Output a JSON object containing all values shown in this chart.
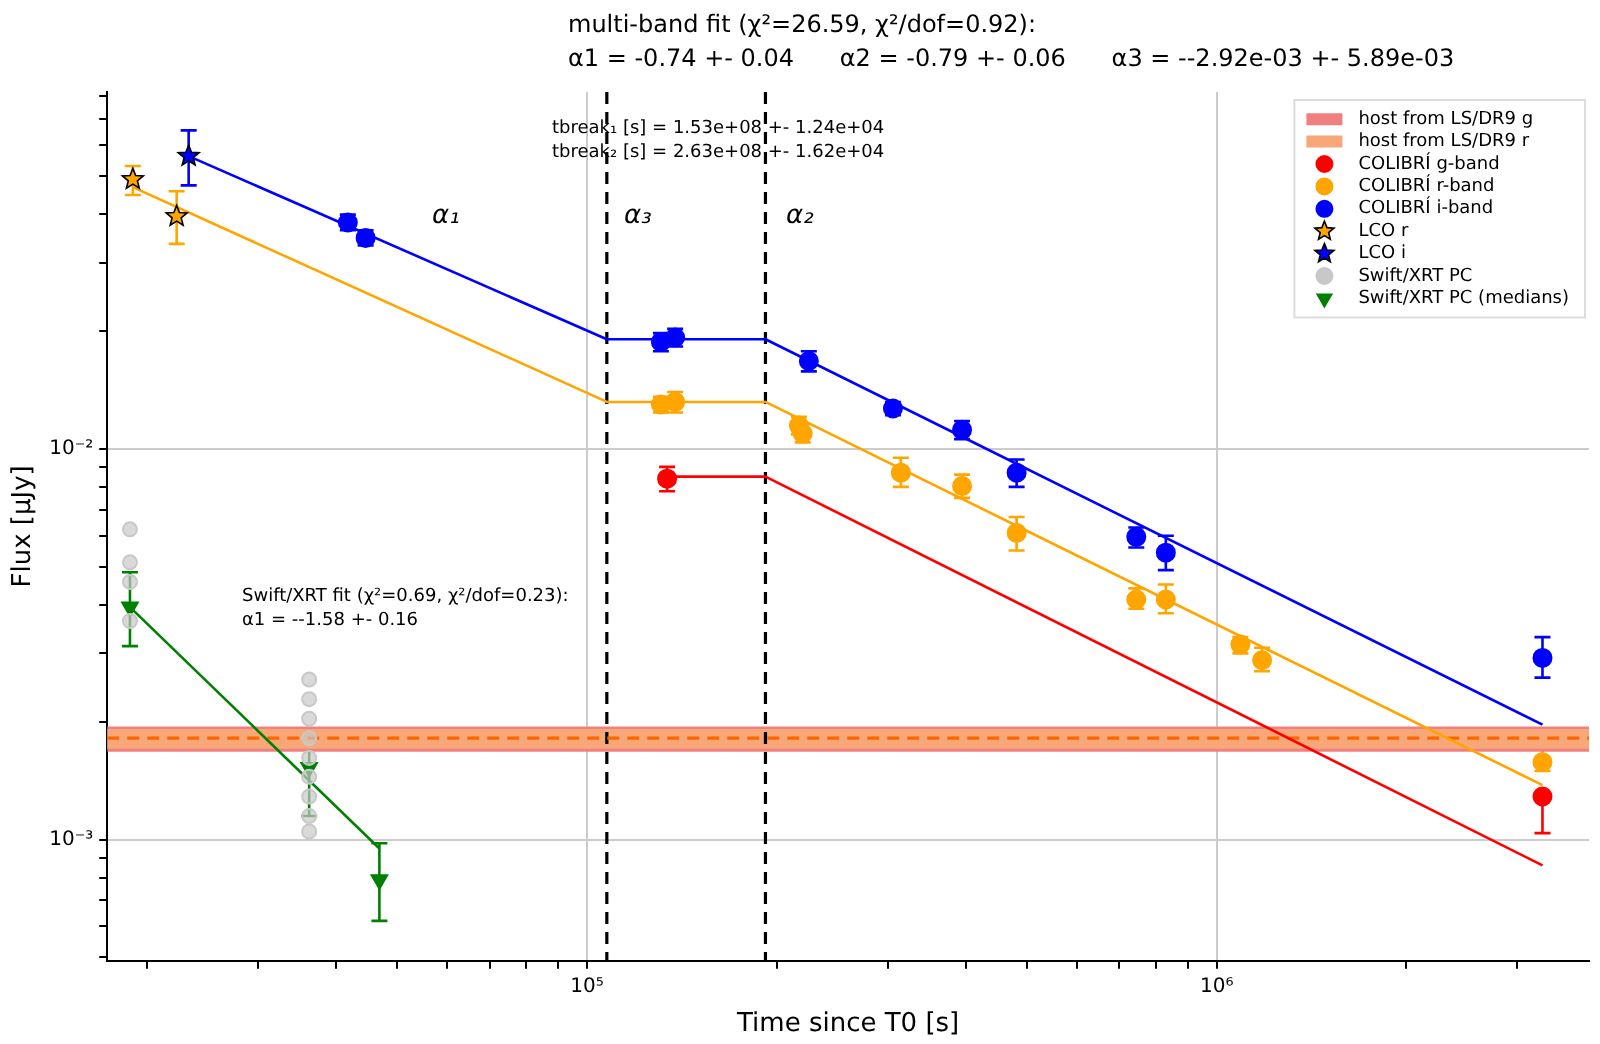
{
  "chart_data": {
    "type": "scatter",
    "title": "multi-band fit (χ²=26.59, χ²/dof=0.92):",
    "subtitle": "α1 = -0.74 +- 0.04      α2 = -0.79 +- 0.06      α3 = --2.92e-03 +- 5.89e-03",
    "xlabel": "Time since T0 [s]",
    "ylabel": "Flux [μJy]",
    "log": "xy",
    "xlim": [
      17300,
      3900000
    ],
    "ylim": [
      0.00049,
      0.082
    ],
    "xticks": [
      {
        "value": 20000,
        "label": null
      },
      {
        "value": 30000,
        "label": null
      },
      {
        "value": 40000,
        "label": null
      },
      {
        "value": 50000,
        "label": null
      },
      {
        "value": 60000,
        "label": null
      },
      {
        "value": 70000,
        "label": null
      },
      {
        "value": 80000,
        "label": null
      },
      {
        "value": 90000,
        "label": null
      },
      {
        "value": 100000,
        "label": "10⁵"
      },
      {
        "value": 200000,
        "label": null
      },
      {
        "value": 300000,
        "label": null
      },
      {
        "value": 400000,
        "label": null
      },
      {
        "value": 500000,
        "label": null
      },
      {
        "value": 600000,
        "label": null
      },
      {
        "value": 700000,
        "label": null
      },
      {
        "value": 800000,
        "label": null
      },
      {
        "value": 900000,
        "label": null
      },
      {
        "value": 1000000,
        "label": "10⁶"
      },
      {
        "value": 2000000,
        "label": null
      },
      {
        "value": 3000000,
        "label": null
      }
    ],
    "yticks": [
      {
        "value": 0.0005,
        "label": null
      },
      {
        "value": 0.0006,
        "label": null
      },
      {
        "value": 0.0007,
        "label": null
      },
      {
        "value": 0.0008,
        "label": null
      },
      {
        "value": 0.0009,
        "label": null
      },
      {
        "value": 0.001,
        "label": "10⁻³"
      },
      {
        "value": 0.002,
        "label": null
      },
      {
        "value": 0.003,
        "label": null
      },
      {
        "value": 0.004,
        "label": null
      },
      {
        "value": 0.005,
        "label": null
      },
      {
        "value": 0.006,
        "label": null
      },
      {
        "value": 0.007,
        "label": null
      },
      {
        "value": 0.008,
        "label": null
      },
      {
        "value": 0.009,
        "label": null
      },
      {
        "value": 0.01,
        "label": "10⁻²"
      },
      {
        "value": 0.02,
        "label": null
      },
      {
        "value": 0.03,
        "label": null
      },
      {
        "value": 0.04,
        "label": null
      },
      {
        "value": 0.05,
        "label": null
      },
      {
        "value": 0.06,
        "label": null
      },
      {
        "value": 0.07,
        "label": null
      },
      {
        "value": 0.08,
        "label": null
      }
    ],
    "grid": true,
    "legend": "top right",
    "series": [
      {
        "name": "COLIBRÍ g-band",
        "type": "scatter",
        "marker": "circle",
        "color": "#ff0000",
        "x": [
          134000,
          3290000
        ],
        "values": [
          0.0084,
          0.00129
        ],
        "errors": [
          [
            0.0078,
            0.009
          ],
          [
            0.00104,
            0.00129
          ]
        ]
      },
      {
        "name": "COLIBRÍ r-band",
        "type": "scatter",
        "marker": "circle",
        "color": "#ffa500",
        "x": [
          131000,
          138000,
          217000,
          220000,
          315000,
          394000,
          481000,
          745000,
          830000,
          1090000,
          1180000,
          3290000
        ],
        "values": [
          0.013,
          0.0132,
          0.01148,
          0.01096,
          0.0087,
          0.00804,
          0.0061,
          0.00412,
          0.00412,
          0.00316,
          0.00288,
          0.00158
        ],
        "errors": [
          [
            0.0124,
            0.0136
          ],
          [
            0.0124,
            0.014
          ],
          [
            0.0109,
            0.0121
          ],
          [
            0.0104,
            0.0116
          ],
          [
            0.008,
            0.0095
          ],
          [
            0.0075,
            0.0086
          ],
          [
            0.0055,
            0.0067
          ],
          [
            0.0039,
            0.0044
          ],
          [
            0.0038,
            0.0045
          ],
          [
            0.003,
            0.0033
          ],
          [
            0.0027,
            0.0031
          ],
          [
            0.0015,
            0.0019
          ]
        ]
      },
      {
        "name": "COLIBRÍ i-band",
        "type": "scatter",
        "color": "#0000ff",
        "x": [
          41700,
          44500,
          131000,
          138000,
          225000,
          306000,
          394000,
          481000,
          745000,
          830000,
          3290000
        ],
        "values": [
          0.038,
          0.0347,
          0.0188,
          0.0193,
          0.0168,
          0.0127,
          0.0112,
          0.0087,
          0.00596,
          0.00543,
          0.00292
        ],
        "errors": [
          [
            0.0363,
            0.0398
          ],
          [
            0.0332,
            0.0363
          ],
          [
            0.0178,
            0.0198
          ],
          [
            0.0183,
            0.0203
          ],
          [
            0.0158,
            0.0178
          ],
          [
            0.0122,
            0.0132
          ],
          [
            0.0106,
            0.0118
          ],
          [
            0.008,
            0.0094
          ],
          [
            0.0056,
            0.0063
          ],
          [
            0.0049,
            0.006
          ],
          [
            0.0026,
            0.0033
          ]
        ]
      },
      {
        "name": "LCO r",
        "type": "scatter",
        "marker": "star",
        "color": "#ffa500",
        "x": [
          19000,
          22300
        ],
        "values": [
          0.049,
          0.0394
        ],
        "errors": [
          [
            0.0447,
            0.053
          ],
          [
            0.0335,
            0.0457
          ]
        ]
      },
      {
        "name": "LCO i",
        "type": "scatter",
        "marker": "star",
        "color": "#0000ff",
        "x": [
          23300
        ],
        "values": [
          0.0562
        ],
        "errors": [
          [
            0.0473,
            0.0654
          ]
        ]
      },
      {
        "name": "Swift/XRT PC",
        "type": "scatter",
        "marker": "circle",
        "color": "#c8c8c8",
        "x": [
          18800,
          18800,
          18800,
          18800,
          36200,
          36200,
          36200,
          36200,
          36200,
          36200,
          36200,
          36200,
          36200
        ],
        "values": [
          0.00623,
          0.00513,
          0.00457,
          0.00363,
          0.00257,
          0.00229,
          0.00204,
          0.00182,
          0.00162,
          0.00145,
          0.00129,
          0.00115,
          0.00105
        ]
      },
      {
        "name": "Swift/XRT PC (medians)",
        "type": "scatter",
        "marker": "triangle",
        "color": "#008000",
        "x": [
          18800,
          36200,
          46800
        ],
        "values": [
          0.00394,
          0.00153,
          0.00079
        ],
        "errors": [
          [
            0.00313,
            0.00484
          ],
          [
            0.00115,
            0.00193
          ],
          [
            0.00062,
            0.00098
          ]
        ]
      },
      {
        "type": "line",
        "marker": "none",
        "color": "#0000ff",
        "x": [
          23300,
          107500,
          192000,
          3290000
        ],
        "values": [
          0.0562,
          0.0191,
          0.0191,
          0.00197
        ]
      },
      {
        "type": "line",
        "marker": "none",
        "color": "#ffa500",
        "x": [
          19000,
          107500,
          192000,
          3290000
        ],
        "values": [
          0.0468,
          0.0132,
          0.0132,
          0.00138
        ]
      },
      {
        "type": "line",
        "marker": "none",
        "color": "#ff0000",
        "x": [
          134000,
          192000,
          3290000
        ],
        "values": [
          0.0085,
          0.0085,
          0.00086
        ]
      },
      {
        "type": "line",
        "marker": "none",
        "color": "#008000",
        "x": [
          18800,
          46800
        ],
        "values": [
          0.00394,
          0.00095
        ]
      }
    ],
    "bands": [
      {
        "axis": "y",
        "from": 0.00168,
        "to": 0.00195,
        "label": "host from LS/DR9 g",
        "color": "#f08080"
      },
      {
        "axis": "y",
        "from": 0.00171,
        "to": 0.00192,
        "label": "host from LS/DR9 r",
        "color": "#f8a878"
      }
    ],
    "ref_lines": [
      {
        "axis": "x",
        "value": 107500,
        "color": "#000000",
        "line_style": "dashed"
      },
      {
        "axis": "x",
        "value": 192000,
        "color": "#000000",
        "line_style": "dashed"
      },
      {
        "axis": "y",
        "value": 0.00182,
        "color": "#ff6600",
        "line_style": "dashed"
      }
    ],
    "annotations": [
      "tbreak₁ [s] = 1.53e+08 +- 1.24e+04",
      "tbreak₂ [s] = 2.63e+08 +- 1.62e+04",
      "α₁",
      "α₃",
      "α₂",
      "Swift/XRT fit (χ²=0.69, χ²/dof=0.23):",
      "α1 = --1.58 +- 0.16"
    ]
  }
}
